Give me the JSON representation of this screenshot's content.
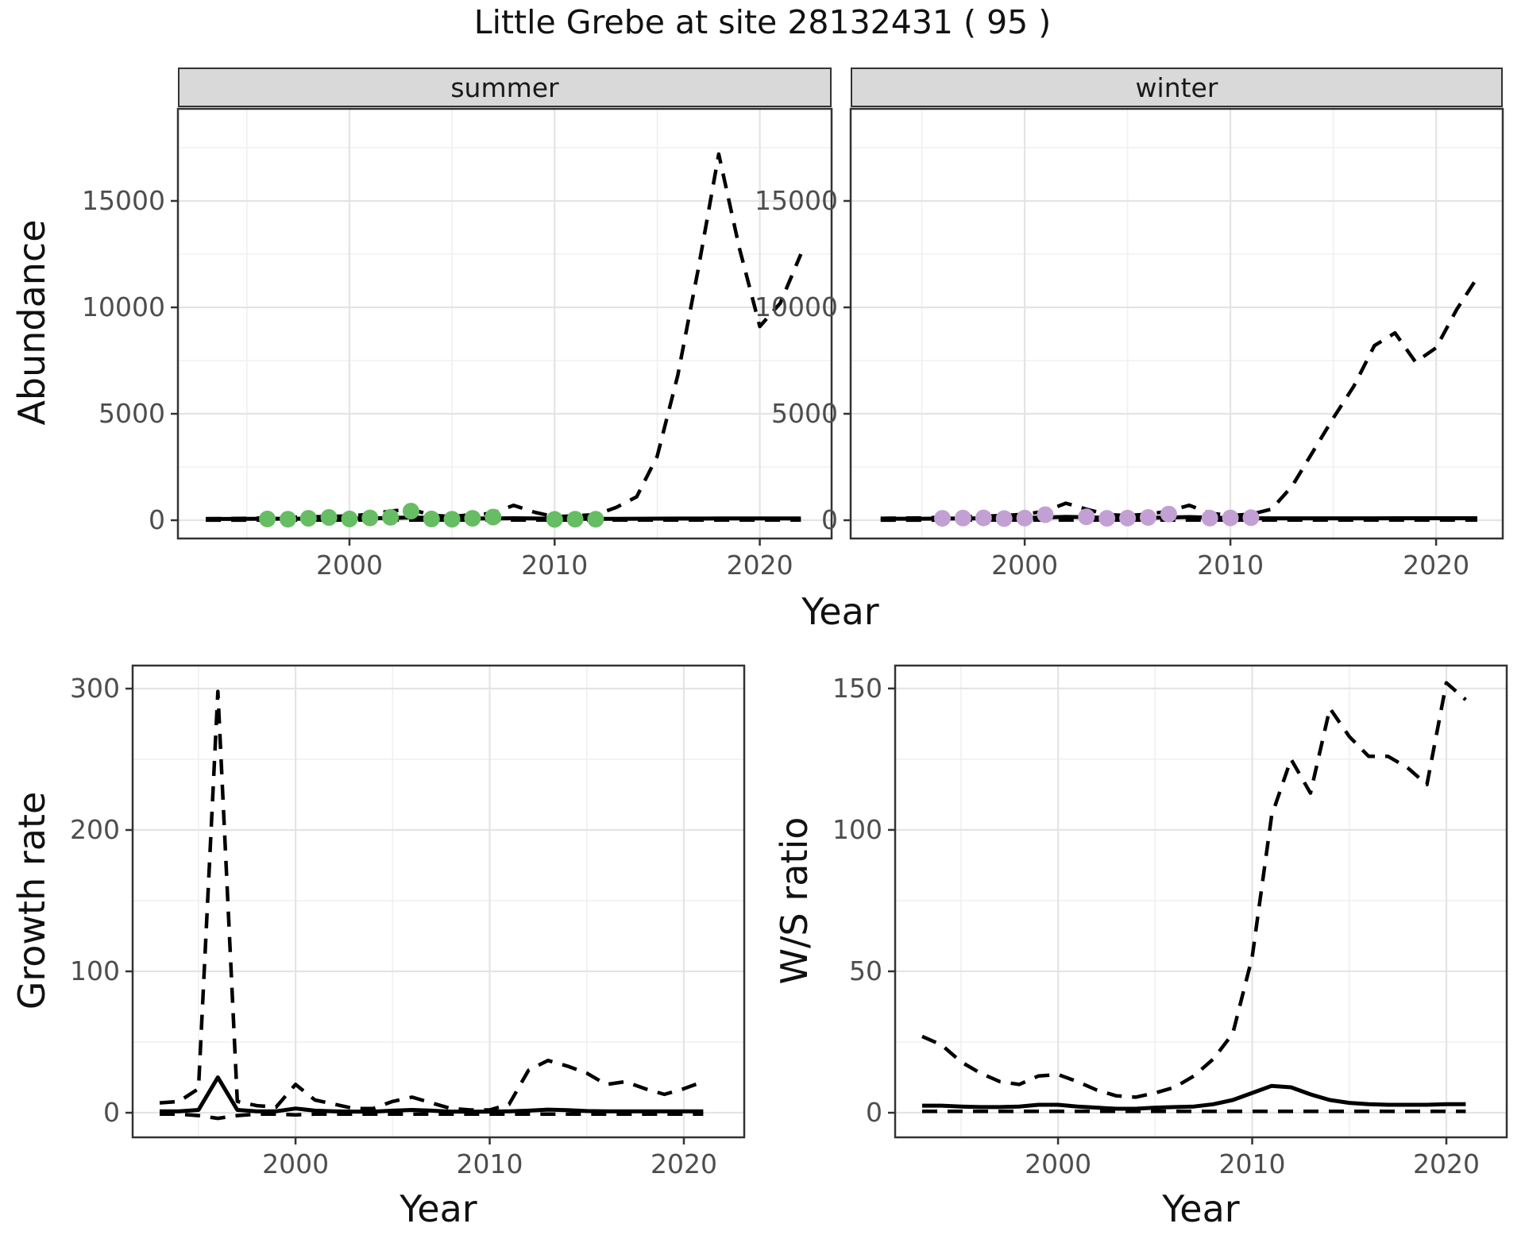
{
  "title": "Little Grebe at site 28132431 ( 95 )",
  "facets": [
    {
      "label": "summer"
    },
    {
      "label": "winter"
    }
  ],
  "axes": {
    "abundance_label": "Abundance",
    "growth_label": "Growth rate",
    "ws_label": "W/S ratio",
    "year_label_top": "Year",
    "year_label_bottom_left": "Year",
    "year_label_bottom_right": "Year"
  },
  "colors": {
    "summer_points": "#66bd63",
    "winter_points": "#c2a0d4",
    "line": "#000000",
    "strip_bg": "#d9d9d9",
    "grid_major": "#e4e4e4",
    "grid_minor": "#f0f0f0",
    "panel_border": "#333333",
    "tick_label": "#4d4d4d"
  },
  "chart_data": [
    {
      "id": "summer_abundance",
      "type": "line",
      "facet": "summer",
      "xlabel": "Year",
      "ylabel": "Abundance",
      "xlim": [
        1991.64,
        2023.5
      ],
      "ylim": [
        -858,
        19328
      ],
      "x_ticks": [
        {
          "value": 2000,
          "label": "2000"
        },
        {
          "value": 2010,
          "label": "2010"
        },
        {
          "value": 2020,
          "label": "2020"
        }
      ],
      "x_minor": [
        1995,
        2005,
        2015
      ],
      "y_ticks": [
        {
          "value": 0,
          "label": "0"
        },
        {
          "value": 5000,
          "label": "5000"
        },
        {
          "value": 10000,
          "label": "10000"
        },
        {
          "value": 15000,
          "label": "15000"
        }
      ],
      "y_minor": [
        2500,
        7500,
        12500,
        17500
      ],
      "series": [
        {
          "name": "lower_ci",
          "style": "dashed",
          "x": [
            1993,
            1994,
            1995,
            1996,
            1997,
            1998,
            1999,
            2000,
            2001,
            2002,
            2003,
            2004,
            2005,
            2006,
            2007,
            2008,
            2009,
            2010,
            2011,
            2012,
            2013,
            2014,
            2015,
            2016,
            2017,
            2018,
            2019,
            2020,
            2021,
            2022
          ],
          "y": [
            5,
            5,
            5,
            6,
            6,
            7,
            7,
            8,
            8,
            9,
            10,
            9,
            8,
            8,
            8,
            9,
            8,
            7,
            7,
            7,
            7,
            8,
            8,
            8,
            8,
            9,
            9,
            9,
            9,
            9
          ]
        },
        {
          "name": "upper_ci",
          "style": "dashed",
          "x": [
            1993,
            1994,
            1995,
            1996,
            1997,
            1998,
            1999,
            2000,
            2001,
            2002,
            2003,
            2004,
            2005,
            2006,
            2007,
            2008,
            2009,
            2010,
            2011,
            2012,
            2013,
            2014,
            2015,
            2016,
            2017,
            2018,
            2019,
            2020,
            2021,
            2022
          ],
          "y": [
            70,
            80,
            90,
            110,
            130,
            160,
            170,
            200,
            280,
            430,
            520,
            230,
            170,
            260,
            320,
            700,
            380,
            160,
            210,
            260,
            600,
            1100,
            3000,
            6800,
            11800,
            17200,
            12800,
            9100,
            10200,
            12500
          ]
        },
        {
          "name": "fitted",
          "style": "solid",
          "x": [
            1993,
            1994,
            1995,
            1996,
            1997,
            1998,
            1999,
            2000,
            2001,
            2002,
            2003,
            2004,
            2005,
            2006,
            2007,
            2008,
            2009,
            2010,
            2011,
            2012,
            2013,
            2014,
            2015,
            2016,
            2017,
            2018,
            2019,
            2020,
            2021,
            2022
          ],
          "y": [
            60,
            60,
            65,
            70,
            70,
            70,
            75,
            80,
            90,
            110,
            130,
            110,
            95,
            85,
            85,
            95,
            85,
            70,
            65,
            65,
            65,
            70,
            75,
            80,
            80,
            85,
            85,
            85,
            85,
            85
          ]
        }
      ],
      "points": {
        "name": "summer-observed",
        "color": "#66bd63",
        "x": [
          1996,
          1997,
          1998,
          1999,
          2000,
          2001,
          2002,
          2003,
          2004,
          2005,
          2006,
          2007,
          2010,
          2011,
          2012
        ],
        "y": [
          60,
          50,
          90,
          130,
          60,
          110,
          140,
          430,
          60,
          50,
          90,
          150,
          40,
          50,
          50
        ]
      }
    },
    {
      "id": "winter_abundance",
      "type": "line",
      "facet": "winter",
      "xlabel": "Year",
      "ylabel": "Abundance",
      "xlim": [
        1991.54,
        2023.24
      ],
      "ylim": [
        -858,
        19328
      ],
      "x_ticks": [
        {
          "value": 2000,
          "label": "2000"
        },
        {
          "value": 2010,
          "label": "2010"
        },
        {
          "value": 2020,
          "label": "2020"
        }
      ],
      "x_minor": [
        1995,
        2005,
        2015
      ],
      "y_ticks": [
        {
          "value": 0,
          "label": "0"
        },
        {
          "value": 5000,
          "label": "5000"
        },
        {
          "value": 10000,
          "label": "10000"
        },
        {
          "value": 15000,
          "label": "15000"
        }
      ],
      "y_minor": [
        2500,
        7500,
        12500,
        17500
      ],
      "series": [
        {
          "name": "lower_ci",
          "style": "dashed",
          "x": [
            1993,
            1994,
            1995,
            1996,
            1997,
            1998,
            1999,
            2000,
            2001,
            2002,
            2003,
            2004,
            2005,
            2006,
            2007,
            2008,
            2009,
            2010,
            2011,
            2012,
            2013,
            2014,
            2015,
            2016,
            2017,
            2018,
            2019,
            2020,
            2021,
            2022
          ],
          "y": [
            5,
            5,
            5,
            6,
            6,
            7,
            7,
            8,
            8,
            9,
            10,
            9,
            8,
            8,
            8,
            9,
            8,
            7,
            7,
            7,
            7,
            8,
            8,
            8,
            8,
            9,
            9,
            9,
            9,
            9
          ]
        },
        {
          "name": "upper_ci",
          "style": "dashed",
          "x": [
            1993,
            1994,
            1995,
            1996,
            1997,
            1998,
            1999,
            2000,
            2001,
            2002,
            2003,
            2004,
            2005,
            2006,
            2007,
            2008,
            2009,
            2010,
            2011,
            2012,
            2013,
            2014,
            2015,
            2016,
            2017,
            2018,
            2019,
            2020,
            2021,
            2022
          ],
          "y": [
            90,
            100,
            110,
            140,
            160,
            190,
            220,
            280,
            420,
            800,
            520,
            260,
            220,
            280,
            430,
            700,
            330,
            220,
            280,
            520,
            1600,
            3200,
            4800,
            6300,
            8200,
            8800,
            7430,
            8100,
            9900,
            11400
          ]
        },
        {
          "name": "fitted",
          "style": "solid",
          "x": [
            1993,
            1994,
            1995,
            1996,
            1997,
            1998,
            1999,
            2000,
            2001,
            2002,
            2003,
            2004,
            2005,
            2006,
            2007,
            2008,
            2009,
            2010,
            2011,
            2012,
            2013,
            2014,
            2015,
            2016,
            2017,
            2018,
            2019,
            2020,
            2021,
            2022
          ],
          "y": [
            70,
            70,
            72,
            78,
            82,
            90,
            100,
            112,
            130,
            158,
            140,
            112,
            100,
            112,
            130,
            150,
            122,
            100,
            92,
            90,
            88,
            88,
            90,
            90,
            90,
            92,
            92,
            92,
            92,
            92
          ]
        }
      ],
      "points": {
        "name": "winter-observed",
        "color": "#c2a0d4",
        "x": [
          1996,
          1997,
          1998,
          1999,
          2000,
          2001,
          2003,
          2004,
          2005,
          2006,
          2007,
          2009,
          2010,
          2011
        ],
        "y": [
          90,
          100,
          110,
          80,
          100,
          260,
          160,
          90,
          100,
          130,
          290,
          100,
          110,
          120
        ]
      }
    },
    {
      "id": "growth_rate",
      "type": "line",
      "xlabel": "Year",
      "ylabel": "Growth rate",
      "xlim": [
        1991.61,
        2023.11
      ],
      "ylim": [
        -17.4,
        316.3
      ],
      "x_ticks": [
        {
          "value": 2000,
          "label": "2000"
        },
        {
          "value": 2010,
          "label": "2010"
        },
        {
          "value": 2020,
          "label": "2020"
        }
      ],
      "x_minor": [
        1995,
        2005,
        2015
      ],
      "y_ticks": [
        {
          "value": 0,
          "label": "0"
        },
        {
          "value": 100,
          "label": "100"
        },
        {
          "value": 200,
          "label": "200"
        },
        {
          "value": 300,
          "label": "300"
        }
      ],
      "y_minor": [
        50,
        150,
        250
      ],
      "series": [
        {
          "name": "lower_ci",
          "style": "dashed",
          "x": [
            1993,
            1994,
            1995,
            1996,
            1997,
            1998,
            1999,
            2000,
            2001,
            2002,
            2003,
            2004,
            2005,
            2006,
            2007,
            2008,
            2009,
            2010,
            2011,
            2012,
            2013,
            2014,
            2015,
            2016,
            2017,
            2018,
            2019,
            2020,
            2021
          ],
          "y": [
            -1,
            -1,
            -2,
            -4,
            -2,
            -1,
            -1,
            -1.5,
            -1,
            -1,
            -1,
            -1,
            -1,
            -1,
            -1,
            -1,
            -1,
            -1,
            -1,
            -1,
            -1,
            -1,
            -1,
            -1,
            -1,
            -1,
            -1,
            -1,
            -1
          ]
        },
        {
          "name": "upper_ci",
          "style": "dashed",
          "x": [
            1993,
            1994,
            1995,
            1996,
            1997,
            1998,
            1999,
            2000,
            2001,
            2002,
            2003,
            2004,
            2005,
            2006,
            2007,
            2008,
            2009,
            2010,
            2011,
            2012,
            2013,
            2014,
            2015,
            2016,
            2017,
            2018,
            2019,
            2020,
            2021
          ],
          "y": [
            7,
            8,
            17,
            298,
            8,
            5,
            4,
            20,
            9,
            6,
            3,
            3,
            8,
            11,
            7,
            3,
            2,
            2,
            6,
            30,
            37,
            33,
            28,
            20,
            22,
            17,
            13,
            17,
            22
          ]
        },
        {
          "name": "fitted",
          "style": "solid",
          "x": [
            1993,
            1994,
            1995,
            1996,
            1997,
            1998,
            1999,
            2000,
            2001,
            2002,
            2003,
            2004,
            2005,
            2006,
            2007,
            2008,
            2009,
            2010,
            2011,
            2012,
            2013,
            2014,
            2015,
            2016,
            2017,
            2018,
            2019,
            2020,
            2021
          ],
          "y": [
            1,
            1,
            2,
            25,
            2,
            1,
            1,
            3,
            1.5,
            1,
            0.8,
            0.8,
            1.5,
            2,
            1.5,
            0.8,
            0.8,
            0.8,
            1,
            1.5,
            2.2,
            1.8,
            1.2,
            1,
            1,
            1,
            1,
            1,
            1
          ]
        }
      ]
    },
    {
      "id": "ws_ratio",
      "type": "line",
      "xlabel": "Year",
      "ylabel": "W/S ratio",
      "xlim": [
        1991.61,
        2023.11
      ],
      "ylim": [
        -8.7,
        158.1
      ],
      "x_ticks": [
        {
          "value": 2000,
          "label": "2000"
        },
        {
          "value": 2010,
          "label": "2010"
        },
        {
          "value": 2020,
          "label": "2020"
        }
      ],
      "x_minor": [
        1995,
        2005,
        2015
      ],
      "y_ticks": [
        {
          "value": 0,
          "label": "0"
        },
        {
          "value": 50,
          "label": "50"
        },
        {
          "value": 100,
          "label": "100"
        },
        {
          "value": 150,
          "label": "150"
        }
      ],
      "y_minor": [
        25,
        75,
        125
      ],
      "series": [
        {
          "name": "lower_ci",
          "style": "dashed",
          "x": [
            1993,
            1994,
            1995,
            1996,
            1997,
            1998,
            1999,
            2000,
            2001,
            2002,
            2003,
            2004,
            2005,
            2006,
            2007,
            2008,
            2009,
            2010,
            2011,
            2012,
            2013,
            2014,
            2015,
            2016,
            2017,
            2018,
            2019,
            2020,
            2021
          ],
          "y": [
            0.5,
            0.5,
            0.5,
            0.5,
            0.5,
            0.5,
            0.5,
            0.5,
            0.5,
            0.5,
            0.5,
            0.5,
            0.5,
            0.5,
            0.5,
            0.5,
            0.5,
            0.5,
            0.5,
            0.5,
            0.5,
            0.5,
            0.5,
            0.5,
            0.5,
            0.5,
            0.5,
            0.5,
            0.5
          ]
        },
        {
          "name": "upper_ci",
          "style": "dashed",
          "x": [
            1993,
            1994,
            1995,
            1996,
            1997,
            1998,
            1999,
            2000,
            2001,
            2002,
            2003,
            2004,
            2005,
            2006,
            2007,
            2008,
            2009,
            2010,
            2011,
            2012,
            2013,
            2014,
            2015,
            2016,
            2017,
            2018,
            2019,
            2020,
            2021
          ],
          "y": [
            27,
            24,
            18,
            14,
            11,
            10,
            13,
            13.5,
            11,
            8,
            6,
            5.5,
            7,
            9,
            13,
            19,
            28,
            55,
            105,
            125,
            113,
            143,
            133,
            126,
            126,
            122,
            116,
            152,
            146
          ]
        },
        {
          "name": "fitted",
          "style": "solid",
          "x": [
            1993,
            1994,
            1995,
            1996,
            1997,
            1998,
            1999,
            2000,
            2001,
            2002,
            2003,
            2004,
            2005,
            2006,
            2007,
            2008,
            2009,
            2010,
            2011,
            2012,
            2013,
            2014,
            2015,
            2016,
            2017,
            2018,
            2019,
            2020,
            2021
          ],
          "y": [
            2.5,
            2.5,
            2.2,
            2,
            2,
            2.2,
            2.8,
            2.8,
            2.2,
            1.8,
            1.4,
            1.4,
            1.8,
            2,
            2.2,
            3,
            4.5,
            7,
            9.5,
            9,
            6.5,
            4.5,
            3.5,
            3,
            2.8,
            2.8,
            2.8,
            3,
            3
          ]
        }
      ]
    }
  ]
}
